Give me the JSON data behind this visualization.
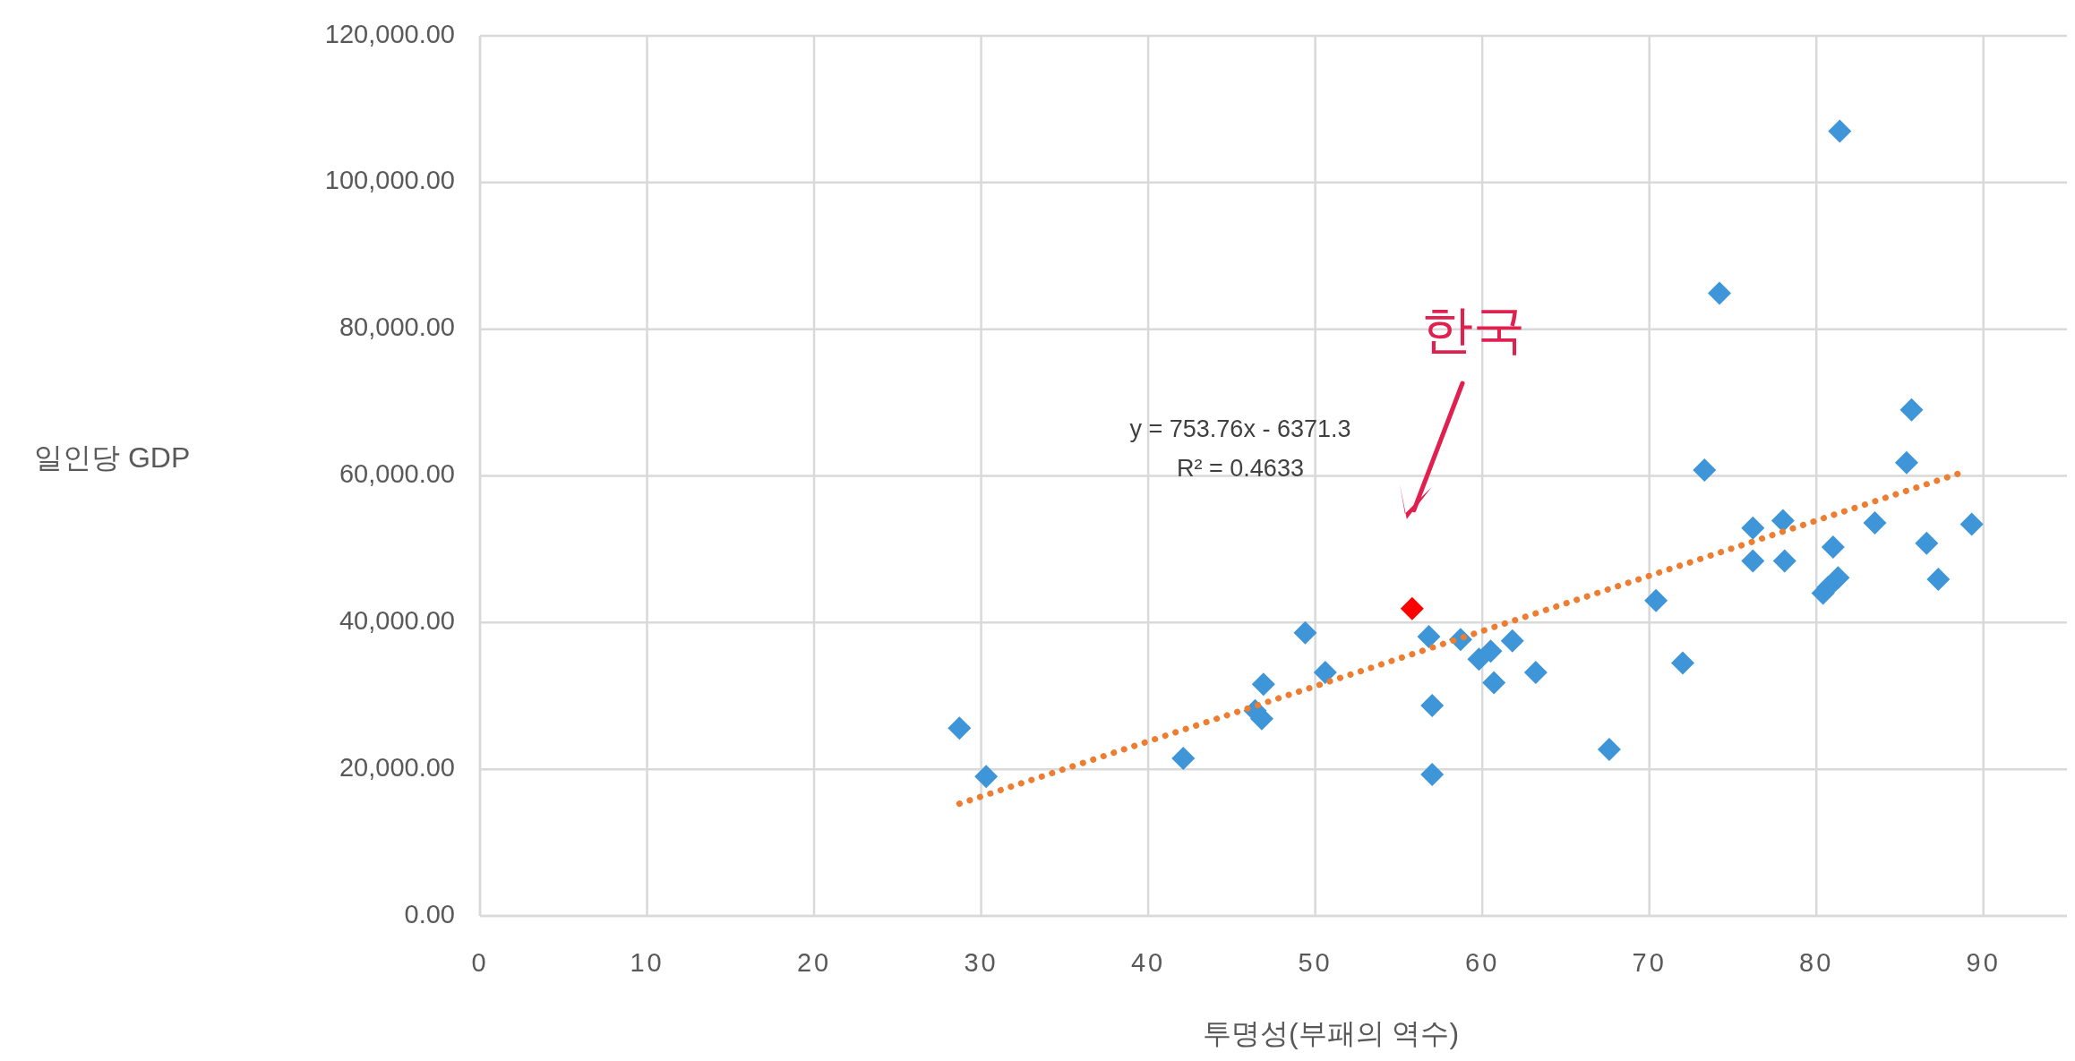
{
  "chart_data": {
    "type": "scatter",
    "xlabel": "투명성(부패의 역수)",
    "ylabel": "일인당 GDP",
    "xlim": [
      0,
      95
    ],
    "xticks": [
      0,
      10,
      20,
      30,
      40,
      50,
      60,
      70,
      80,
      90
    ],
    "ylim": [
      0,
      120000
    ],
    "yticks": [
      {
        "value": 0,
        "label": "0.00"
      },
      {
        "value": 20000,
        "label": "20,000.00"
      },
      {
        "value": 40000,
        "label": "40,000.00"
      },
      {
        "value": 60000,
        "label": "60,000.00"
      },
      {
        "value": 80000,
        "label": "80,000.00"
      },
      {
        "value": 100000,
        "label": "100,000.00"
      },
      {
        "value": 120000,
        "label": "120,000.00"
      }
    ],
    "grid": true,
    "marker": "diamond",
    "series": [
      {
        "type": "scatter",
        "color": "#3e95d8",
        "x": [
          28.7,
          30.3,
          42.1,
          46.4,
          46.8,
          46.9,
          49.4,
          50.6,
          56.8,
          57.0,
          57.0,
          58.7,
          59.8,
          60.5,
          60.7,
          61.8,
          63.2,
          67.6,
          70.4,
          72.0,
          73.3,
          74.2,
          76.2,
          76.2,
          78.0,
          78.1,
          80.4,
          80.7,
          81.0,
          81.3,
          81.4,
          83.5,
          85.4,
          85.7,
          86.6,
          87.3,
          89.3
        ],
        "values": [
          25600,
          19000,
          21500,
          28000,
          26900,
          31600,
          38600,
          33200,
          38100,
          28700,
          19300,
          37700,
          35000,
          36100,
          31800,
          37500,
          33200,
          22700,
          43000,
          34500,
          60800,
          84900,
          52900,
          48400,
          53900,
          48400,
          44000,
          44800,
          50300,
          46100,
          107000,
          53600,
          61800,
          69000,
          50800,
          45900,
          53400
        ]
      },
      {
        "type": "scatter",
        "color": "#ff0000",
        "x": [
          55.8
        ],
        "values": [
          41900
        ]
      },
      {
        "type": "line",
        "color": "#ed7d31",
        "line_style": "dotted",
        "marker": "none",
        "x": [
          28.7,
          88.5
        ],
        "values": [
          15300,
          60300
        ]
      }
    ],
    "annotations": [
      "한국",
      "y = 753.76x - 6371.3",
      "R² = 0.4633"
    ]
  }
}
